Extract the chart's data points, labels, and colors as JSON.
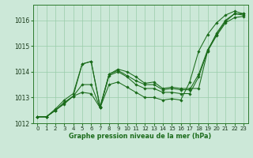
{
  "xlabel": "Graphe pression niveau de la mer (hPa)",
  "ylim": [
    1012,
    1016.6
  ],
  "xlim": [
    -0.5,
    23.5
  ],
  "yticks": [
    1012,
    1013,
    1014,
    1015,
    1016
  ],
  "xticks": [
    0,
    1,
    2,
    3,
    4,
    5,
    6,
    7,
    8,
    9,
    10,
    11,
    12,
    13,
    14,
    15,
    16,
    17,
    18,
    19,
    20,
    21,
    22,
    23
  ],
  "background_color": "#cce8d8",
  "grid_color": "#99ccaa",
  "line_color": "#1a6b1a",
  "series": [
    [
      1012.25,
      1012.25,
      1012.5,
      1012.8,
      1013.05,
      1014.3,
      1014.4,
      1012.6,
      1013.9,
      1014.1,
      1014.0,
      1013.8,
      1013.55,
      1013.6,
      1013.35,
      1013.4,
      1013.35,
      1013.35,
      1013.35,
      1014.8,
      1015.5,
      1016.0,
      1016.25,
      1016.2
    ],
    [
      1012.25,
      1012.25,
      1012.5,
      1012.8,
      1013.05,
      1013.5,
      1013.5,
      1012.6,
      1013.85,
      1014.0,
      1013.8,
      1013.5,
      1013.35,
      1013.35,
      1013.2,
      1013.2,
      1013.15,
      1013.15,
      1013.8,
      1014.8,
      1015.4,
      1015.9,
      1016.1,
      1016.15
    ],
    [
      1012.25,
      1012.25,
      1012.55,
      1012.9,
      1013.15,
      1014.3,
      1014.4,
      1012.65,
      1013.9,
      1014.05,
      1013.85,
      1013.65,
      1013.5,
      1013.5,
      1013.3,
      1013.35,
      1013.3,
      1013.3,
      1013.9,
      1014.85,
      1015.45,
      1015.95,
      1016.25,
      1016.25
    ],
    [
      1012.25,
      1012.25,
      1012.5,
      1012.75,
      1013.05,
      1013.2,
      1013.15,
      1012.6,
      1013.5,
      1013.6,
      1013.4,
      1013.2,
      1013.0,
      1013.0,
      1012.9,
      1012.95,
      1012.9,
      1013.6,
      1014.8,
      1015.45,
      1015.9,
      1016.2,
      1016.35,
      1016.25
    ]
  ],
  "tick_fontsize": 5.0,
  "xlabel_fontsize": 5.8,
  "marker_size": 1.8,
  "line_width": 0.75
}
